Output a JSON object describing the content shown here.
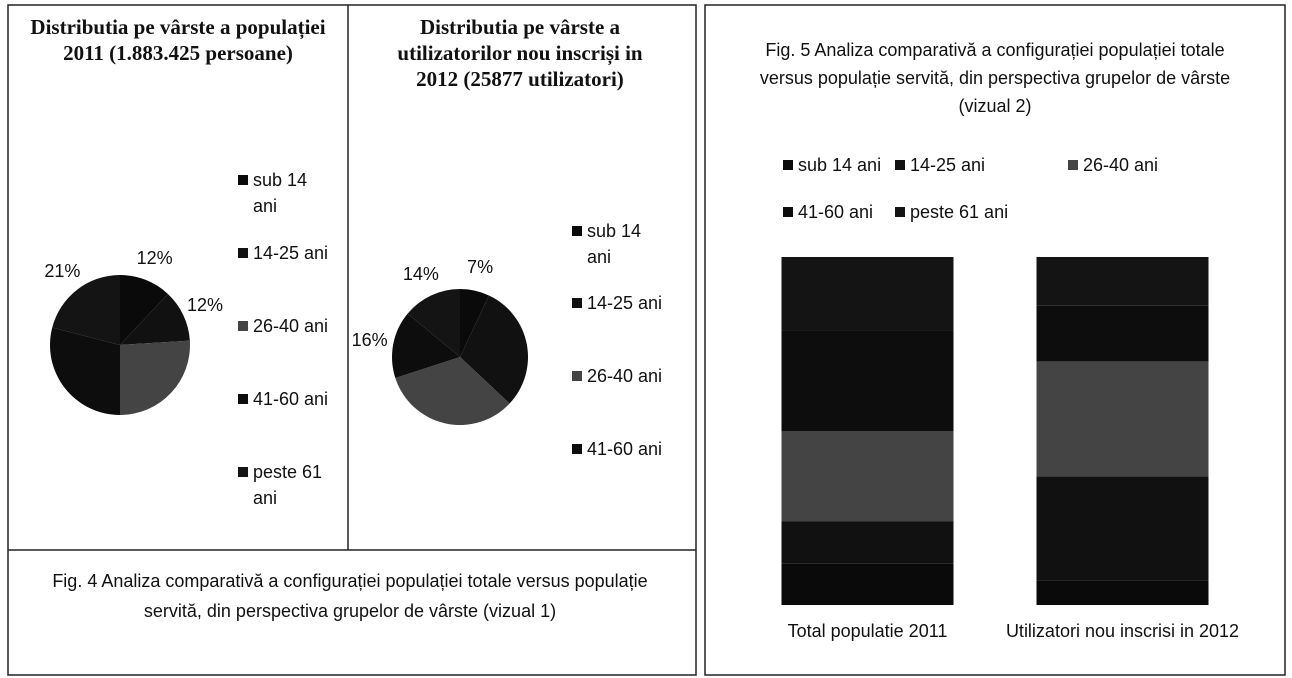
{
  "chart_data": [
    {
      "type": "pie",
      "title": "Distributia pe vârste a populației 2011 (1.883.425 persoane)",
      "categories": [
        "sub 14 ani",
        "14-25 ani",
        "26-40 ani",
        "41-60 ani",
        "peste 61 ani"
      ],
      "values": [
        12,
        12,
        26,
        29,
        21
      ],
      "value_labels": [
        "12%",
        "12%",
        null,
        null,
        "21%"
      ],
      "colors": [
        "#0a0a0a",
        "#111111",
        "#444444",
        "#0d0d0d",
        "#141414"
      ]
    },
    {
      "type": "pie",
      "title": "Distributia pe vârste a utilizatorilor nou inscriși in 2012 (25877 utilizatori)",
      "categories": [
        "sub 14 ani",
        "14-25 ani",
        "26-40 ani",
        "41-60 ani",
        null
      ],
      "values": [
        7,
        30,
        33,
        16,
        14
      ],
      "value_labels": [
        "7%",
        null,
        null,
        "16%",
        "14%"
      ],
      "colors": [
        "#0a0a0a",
        "#111111",
        "#444444",
        "#0d0d0d",
        "#141414"
      ]
    },
    {
      "type": "stacked_bar",
      "title": "Fig. 5 Analiza comparativă a configurației populației totale versus populație servită, din perspectiva grupelor de vârste (vizual 2)",
      "categories": [
        "Total populatie 2011",
        "Utilizatori nou inscrisi in 2012"
      ],
      "ylim": [
        0,
        100
      ],
      "series": [
        {
          "name": "sub 14 ani",
          "color": "#0a0a0a",
          "values": [
            12,
            7
          ]
        },
        {
          "name": "14-25 ani",
          "color": "#111111",
          "values": [
            12,
            30
          ]
        },
        {
          "name": "26-40 ani",
          "color": "#444444",
          "values": [
            26,
            33
          ]
        },
        {
          "name": "41-60  ani",
          "color": "#0d0d0d",
          "values": [
            29,
            16
          ]
        },
        {
          "name": "peste 61 ani",
          "color": "#141414",
          "values": [
            21,
            14
          ]
        }
      ]
    }
  ],
  "figure_4": {
    "caption": "Fig. 4 Analiza comparativă a configurației populației totale versus populație servită, din perspectiva grupelor de vârste (vizual 1)"
  }
}
